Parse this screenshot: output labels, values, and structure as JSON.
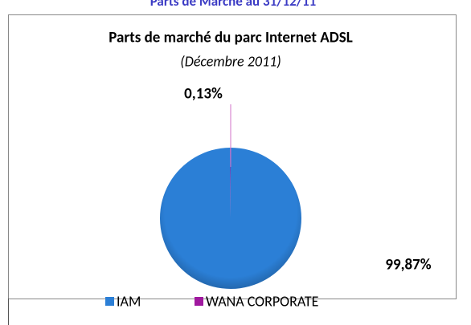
{
  "header_title": "Parts de Marché au 31/12/11",
  "chart_data": {
    "type": "pie",
    "title": "Parts de marché du parc Internet ADSL",
    "subtitle": "(Décembre 2011)",
    "categories": [
      "IAM",
      "WANA CORPORATE"
    ],
    "values": [
      99.87,
      0.13
    ],
    "value_labels": [
      "99,87%",
      "0,13%"
    ],
    "colors": [
      "#2b7fd6",
      "#a0199f"
    ],
    "legend": "bottom"
  }
}
